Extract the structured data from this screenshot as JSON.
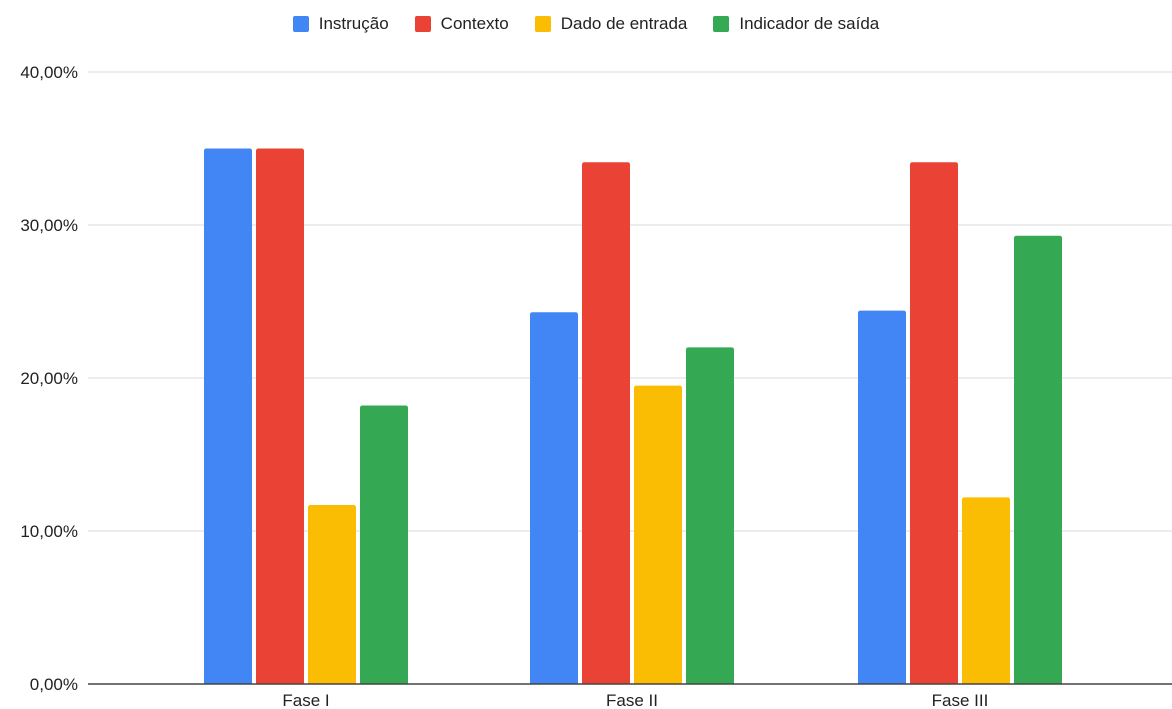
{
  "chart_data": {
    "type": "bar",
    "categories": [
      "Fase I",
      "Fase II",
      "Fase III"
    ],
    "series": [
      {
        "name": "Instrução",
        "color": "#4285F4",
        "values": [
          35.0,
          24.3,
          24.4
        ]
      },
      {
        "name": "Contexto",
        "color": "#EA4335",
        "values": [
          35.0,
          34.1,
          34.1
        ]
      },
      {
        "name": "Dado de entrada",
        "color": "#FBBC04",
        "values": [
          11.7,
          19.5,
          12.2
        ]
      },
      {
        "name": "Indicador de saída",
        "color": "#34A853",
        "values": [
          18.2,
          22.0,
          29.3
        ]
      }
    ],
    "ylim": [
      0,
      40
    ],
    "yticks": [
      0,
      10,
      20,
      30,
      40
    ],
    "ytick_labels": [
      "0,00%",
      "10,00%",
      "20,00%",
      "30,00%",
      "40,00%"
    ],
    "grid": true,
    "legend_position": "top"
  }
}
